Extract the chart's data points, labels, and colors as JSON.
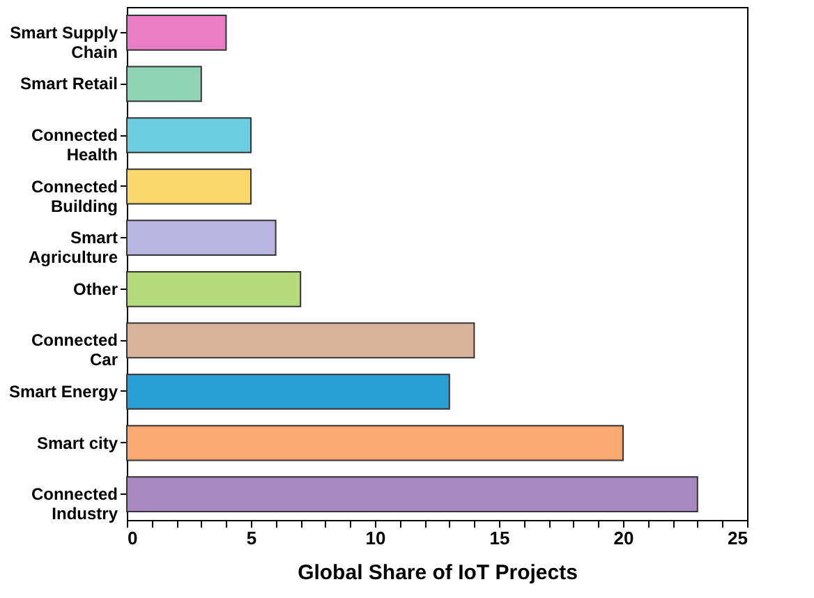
{
  "chart_data": {
    "type": "bar",
    "orientation": "horizontal",
    "xlabel": "Global Share of IoT Projects",
    "categories": [
      "Smart Supply Chain",
      "Smart Retail",
      "Connected Health",
      "Connected Building",
      "Smart Agriculture",
      "Other",
      "Connected Car",
      "Smart Energy",
      "Smart city",
      "Connected Industry"
    ],
    "values": [
      4,
      3,
      5,
      5,
      6,
      7,
      14,
      13,
      20,
      23
    ],
    "colors": [
      "#e87dc3",
      "#8fd4b4",
      "#6ccfe0",
      "#fbd76b",
      "#b8b4e0",
      "#b5dc7b",
      "#d9b49c",
      "#2a9fd6",
      "#f9a86f",
      "#a987c0"
    ],
    "xlim": [
      0,
      25
    ],
    "xticks": [
      0,
      {
        "value": 1,
        "label": null
      },
      {
        "value": 2,
        "label": null
      },
      {
        "value": 3,
        "label": null
      },
      {
        "value": 4,
        "label": null
      },
      5,
      {
        "value": 6,
        "label": null
      },
      {
        "value": 7,
        "label": null
      },
      {
        "value": 8,
        "label": null
      },
      {
        "value": 9,
        "label": null
      },
      10,
      {
        "value": 11,
        "label": null
      },
      {
        "value": 12,
        "label": null
      },
      {
        "value": 13,
        "label": null
      },
      {
        "value": 14,
        "label": null
      },
      15,
      {
        "value": 16,
        "label": null
      },
      {
        "value": 17,
        "label": null
      },
      {
        "value": 18,
        "label": null
      },
      {
        "value": 19,
        "label": null
      },
      20,
      {
        "value": 21,
        "label": null
      },
      {
        "value": 22,
        "label": null
      },
      {
        "value": 23,
        "label": null
      },
      {
        "value": 24,
        "label": null
      },
      25
    ],
    "grid": false,
    "legend": false
  }
}
